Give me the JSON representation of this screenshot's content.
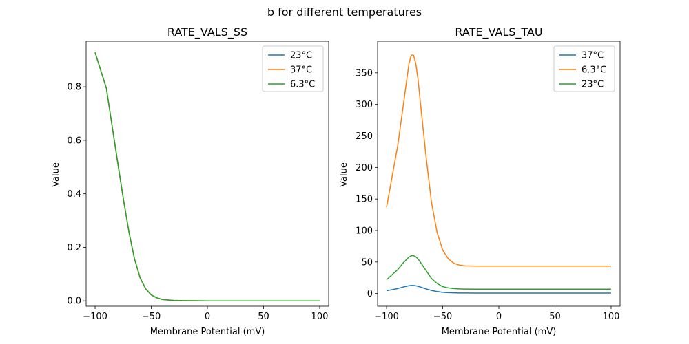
{
  "figure_title": "b for different temperatures",
  "chart_data": [
    {
      "type": "line",
      "title": "RATE_VALS_SS",
      "xlabel": "Membrane Potential (mV)",
      "ylabel": "Value",
      "xlim": [
        -108,
        108
      ],
      "ylim": [
        -0.02,
        0.97
      ],
      "xticks": [
        -100,
        -50,
        0,
        50,
        100
      ],
      "xtick_labels": [
        "−100",
        "−50",
        "0",
        "50",
        "100"
      ],
      "yticks": [
        0.0,
        0.2,
        0.4,
        0.6,
        0.8
      ],
      "ytick_labels": [
        "0.0",
        "0.2",
        "0.4",
        "0.6",
        "0.8"
      ],
      "grid": false,
      "legend": "top-right",
      "x": [
        -100,
        -90,
        -80,
        -75,
        -70,
        -65,
        -60,
        -55,
        -50,
        -45,
        -40,
        -35,
        -30,
        -20,
        -10,
        0,
        50,
        100
      ],
      "series": [
        {
          "name": "23°C",
          "color": "#1f77b4",
          "values": [
            0.928,
            0.795,
            0.52,
            0.385,
            0.26,
            0.158,
            0.087,
            0.045,
            0.022,
            0.011,
            0.005,
            0.003,
            0.0015,
            0.0005,
            0.0002,
            0.0,
            0.0,
            0.0
          ]
        },
        {
          "name": "37°C",
          "color": "#ff7f0e",
          "values": [
            0.928,
            0.795,
            0.52,
            0.385,
            0.26,
            0.158,
            0.087,
            0.045,
            0.022,
            0.011,
            0.005,
            0.003,
            0.0015,
            0.0005,
            0.0002,
            0.0,
            0.0,
            0.0
          ]
        },
        {
          "name": "6.3°C",
          "color": "#2ca02c",
          "values": [
            0.928,
            0.795,
            0.52,
            0.385,
            0.26,
            0.158,
            0.087,
            0.045,
            0.022,
            0.011,
            0.005,
            0.003,
            0.0015,
            0.0005,
            0.0002,
            0.0,
            0.0,
            0.0
          ]
        }
      ]
    },
    {
      "type": "line",
      "title": "RATE_VALS_TAU",
      "xlabel": "Membrane Potential (mV)",
      "ylabel": "Value",
      "xlim": [
        -108,
        108
      ],
      "ylim": [
        -20,
        400
      ],
      "xticks": [
        -100,
        -50,
        0,
        50,
        100
      ],
      "xtick_labels": [
        "−100",
        "−50",
        "0",
        "50",
        "100"
      ],
      "yticks": [
        0,
        50,
        100,
        150,
        200,
        250,
        300,
        350
      ],
      "ytick_labels": [
        "0",
        "50",
        "100",
        "150",
        "200",
        "250",
        "300",
        "350"
      ],
      "grid": false,
      "legend": "top-right",
      "x": [
        -100,
        -90,
        -85,
        -80,
        -78,
        -76,
        -74,
        -72,
        -70,
        -65,
        -60,
        -55,
        -50,
        -45,
        -40,
        -35,
        -30,
        -20,
        -10,
        0,
        50,
        100
      ],
      "series": [
        {
          "name": "37°C",
          "color": "#1f77b4",
          "values": [
            4.5,
            8,
            10.5,
            12.5,
            12.8,
            12.8,
            12.4,
            11.5,
            10.5,
            7.5,
            5.0,
            3.2,
            2.0,
            1.4,
            1.1,
            0.9,
            0.8,
            0.7,
            0.7,
            0.7,
            0.7,
            0.7
          ]
        },
        {
          "name": "6.3°C",
          "color": "#ff7f0e",
          "values": [
            137,
            235,
            300,
            365,
            378,
            378,
            365,
            340,
            305,
            220,
            145,
            97,
            69,
            55,
            48,
            45,
            44,
            43.5,
            43.5,
            43.5,
            43.5,
            43.5
          ]
        },
        {
          "name": "23°C",
          "color": "#2ca02c",
          "values": [
            22,
            38,
            49,
            58,
            60,
            60,
            58.5,
            55,
            50,
            37,
            24,
            16,
            11,
            9,
            8,
            7.4,
            7.2,
            7.0,
            7.0,
            7.0,
            7.0,
            7.0
          ]
        }
      ]
    }
  ]
}
